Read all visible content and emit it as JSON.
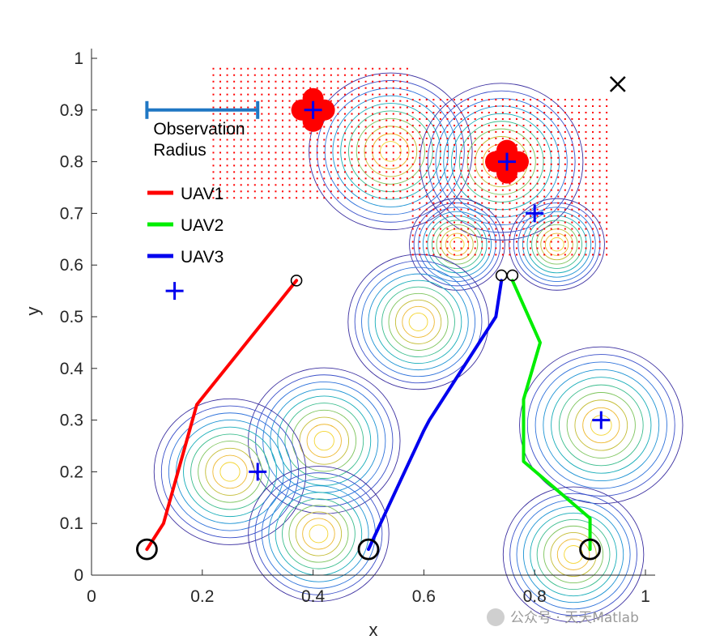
{
  "chart_data": {
    "type": "line",
    "xlabel": "x",
    "ylabel": "y",
    "xlim": [
      0,
      1
    ],
    "ylim": [
      0,
      1
    ],
    "xticks": [
      "0",
      "0.2",
      "0.4",
      "0.6",
      "0.8",
      "1"
    ],
    "yticks": [
      "0",
      "0.1",
      "0.2",
      "0.3",
      "0.4",
      "0.5",
      "0.6",
      "0.7",
      "0.8",
      "0.9",
      "1"
    ],
    "observation_radius_label": [
      "Observation",
      "Radius"
    ],
    "observation_radius_bar": {
      "x0": 0.1,
      "x1": 0.3,
      "y": 0.9
    },
    "legend": [
      {
        "name": "UAV1",
        "color": "#ff0000"
      },
      {
        "name": "UAV2",
        "color": "#00ee00"
      },
      {
        "name": "UAV3",
        "color": "#0000ee"
      }
    ],
    "series": [
      {
        "name": "UAV1",
        "color": "#ff0000",
        "points": [
          [
            0.1,
            0.05
          ],
          [
            0.13,
            0.1
          ],
          [
            0.19,
            0.33
          ],
          [
            0.37,
            0.57
          ]
        ]
      },
      {
        "name": "UAV2",
        "color": "#00ee00",
        "points": [
          [
            0.9,
            0.05
          ],
          [
            0.9,
            0.11
          ],
          [
            0.78,
            0.22
          ],
          [
            0.78,
            0.34
          ],
          [
            0.81,
            0.45
          ],
          [
            0.76,
            0.57
          ]
        ]
      },
      {
        "name": "UAV3",
        "color": "#0000ee",
        "points": [
          [
            0.5,
            0.05
          ],
          [
            0.6,
            0.28
          ],
          [
            0.61,
            0.3
          ],
          [
            0.73,
            0.5
          ],
          [
            0.74,
            0.57
          ]
        ]
      }
    ],
    "start_points": [
      [
        0.1,
        0.05
      ],
      [
        0.5,
        0.05
      ],
      [
        0.9,
        0.05
      ]
    ],
    "end_points": [
      [
        0.37,
        0.57
      ],
      [
        0.74,
        0.58
      ],
      [
        0.76,
        0.58
      ]
    ],
    "targets": [
      [
        0.4,
        0.9
      ],
      [
        0.75,
        0.8
      ],
      [
        0.8,
        0.7
      ],
      [
        0.15,
        0.55
      ],
      [
        0.92,
        0.3
      ],
      [
        0.3,
        0.2
      ]
    ],
    "x_marker": [
      0.95,
      0.95
    ],
    "contour_peaks": [
      {
        "x": 0.54,
        "y": 0.82,
        "r": 0.14
      },
      {
        "x": 0.74,
        "y": 0.8,
        "r": 0.14
      },
      {
        "x": 0.66,
        "y": 0.64,
        "r": 0.08
      },
      {
        "x": 0.84,
        "y": 0.64,
        "r": 0.08
      },
      {
        "x": 0.59,
        "y": 0.49,
        "r": 0.12
      },
      {
        "x": 0.42,
        "y": 0.26,
        "r": 0.13
      },
      {
        "x": 0.25,
        "y": 0.2,
        "r": 0.13
      },
      {
        "x": 0.41,
        "y": 0.08,
        "r": 0.12
      },
      {
        "x": 0.92,
        "y": 0.29,
        "r": 0.14
      },
      {
        "x": 0.87,
        "y": 0.04,
        "r": 0.12
      }
    ],
    "red_blobs": [
      [
        0.4,
        0.9
      ],
      [
        0.75,
        0.8
      ]
    ],
    "red_dot_regions": [
      {
        "x0": 0.22,
        "x1": 0.57,
        "y0": 0.73,
        "y1": 0.99
      },
      {
        "x0": 0.58,
        "x1": 0.93,
        "y0": 0.62,
        "y1": 0.93
      }
    ]
  },
  "watermark": "公众号 · 天天Matlab"
}
